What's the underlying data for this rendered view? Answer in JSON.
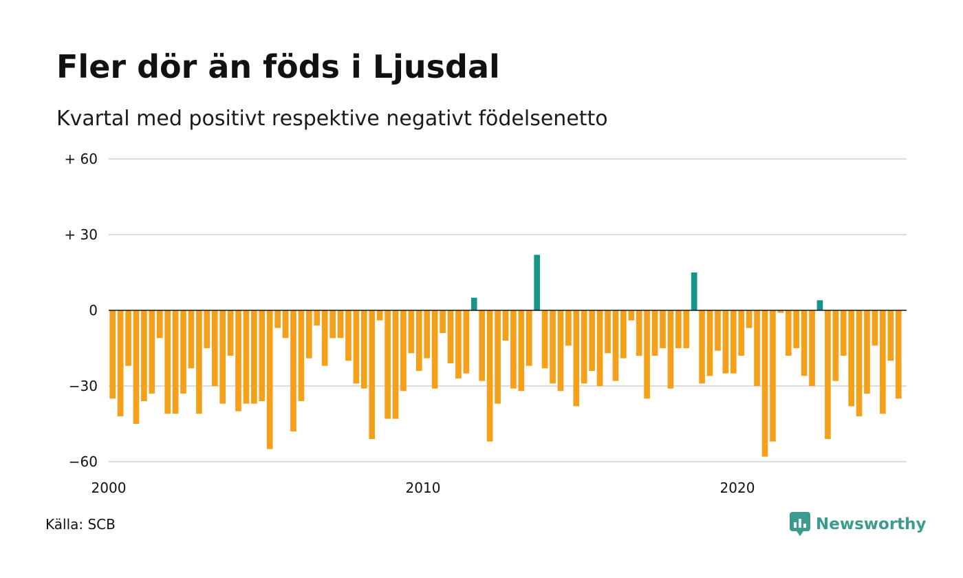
{
  "chart_data": {
    "type": "bar",
    "title": "Fler dör än föds i Ljusdal",
    "subtitle": "Kvartal med positivt respektive negativt födelsenetto",
    "ylim": [
      -60,
      60
    ],
    "y_ticks": [
      {
        "value": 60,
        "label": "+ 60"
      },
      {
        "value": 30,
        "label": "+ 30"
      },
      {
        "value": 0,
        "label": "0"
      },
      {
        "value": -30,
        "label": "−30"
      },
      {
        "value": -60,
        "label": "−60"
      }
    ],
    "x_ticks": [
      {
        "value": 2000,
        "label": "2000"
      },
      {
        "value": 2010,
        "label": "2010"
      },
      {
        "value": 2020,
        "label": "2020"
      }
    ],
    "x_start": 2000,
    "grid": true,
    "positive_color": "#16958a",
    "negative_color": "#f5a01a",
    "values": [
      -35,
      -42,
      -22,
      -45,
      -36,
      -33,
      -11,
      -41,
      -41,
      -33,
      -23,
      -41,
      -15,
      -30,
      -37,
      -18,
      -40,
      -37,
      -37,
      -36,
      -55,
      -7,
      -11,
      -48,
      -36,
      -19,
      -6,
      -22,
      -11,
      -11,
      -20,
      -29,
      -31,
      -51,
      -4,
      -43,
      -43,
      -32,
      -17,
      -24,
      -19,
      -31,
      -9,
      -21,
      -27,
      -25,
      5,
      -28,
      -52,
      -37,
      -12,
      -31,
      -32,
      -22,
      22,
      -23,
      -29,
      -32,
      -14,
      -38,
      -29,
      -24,
      -30,
      -17,
      -28,
      -19,
      -4,
      -18,
      -35,
      -18,
      -15,
      -31,
      -15,
      -15,
      15,
      -29,
      -26,
      -16,
      -25,
      -25,
      -18,
      -7,
      -30,
      -58,
      -52,
      -1,
      -18,
      -15,
      -26,
      -30,
      4,
      -51,
      -28,
      -18,
      -38,
      -42,
      -33,
      -14,
      -41,
      -20,
      -35
    ]
  },
  "footer": {
    "source": "Källa: SCB",
    "brand": "Newsworthy",
    "brand_icon": "newsworthy-logo-icon",
    "brand_color": "#3b9b8f"
  }
}
